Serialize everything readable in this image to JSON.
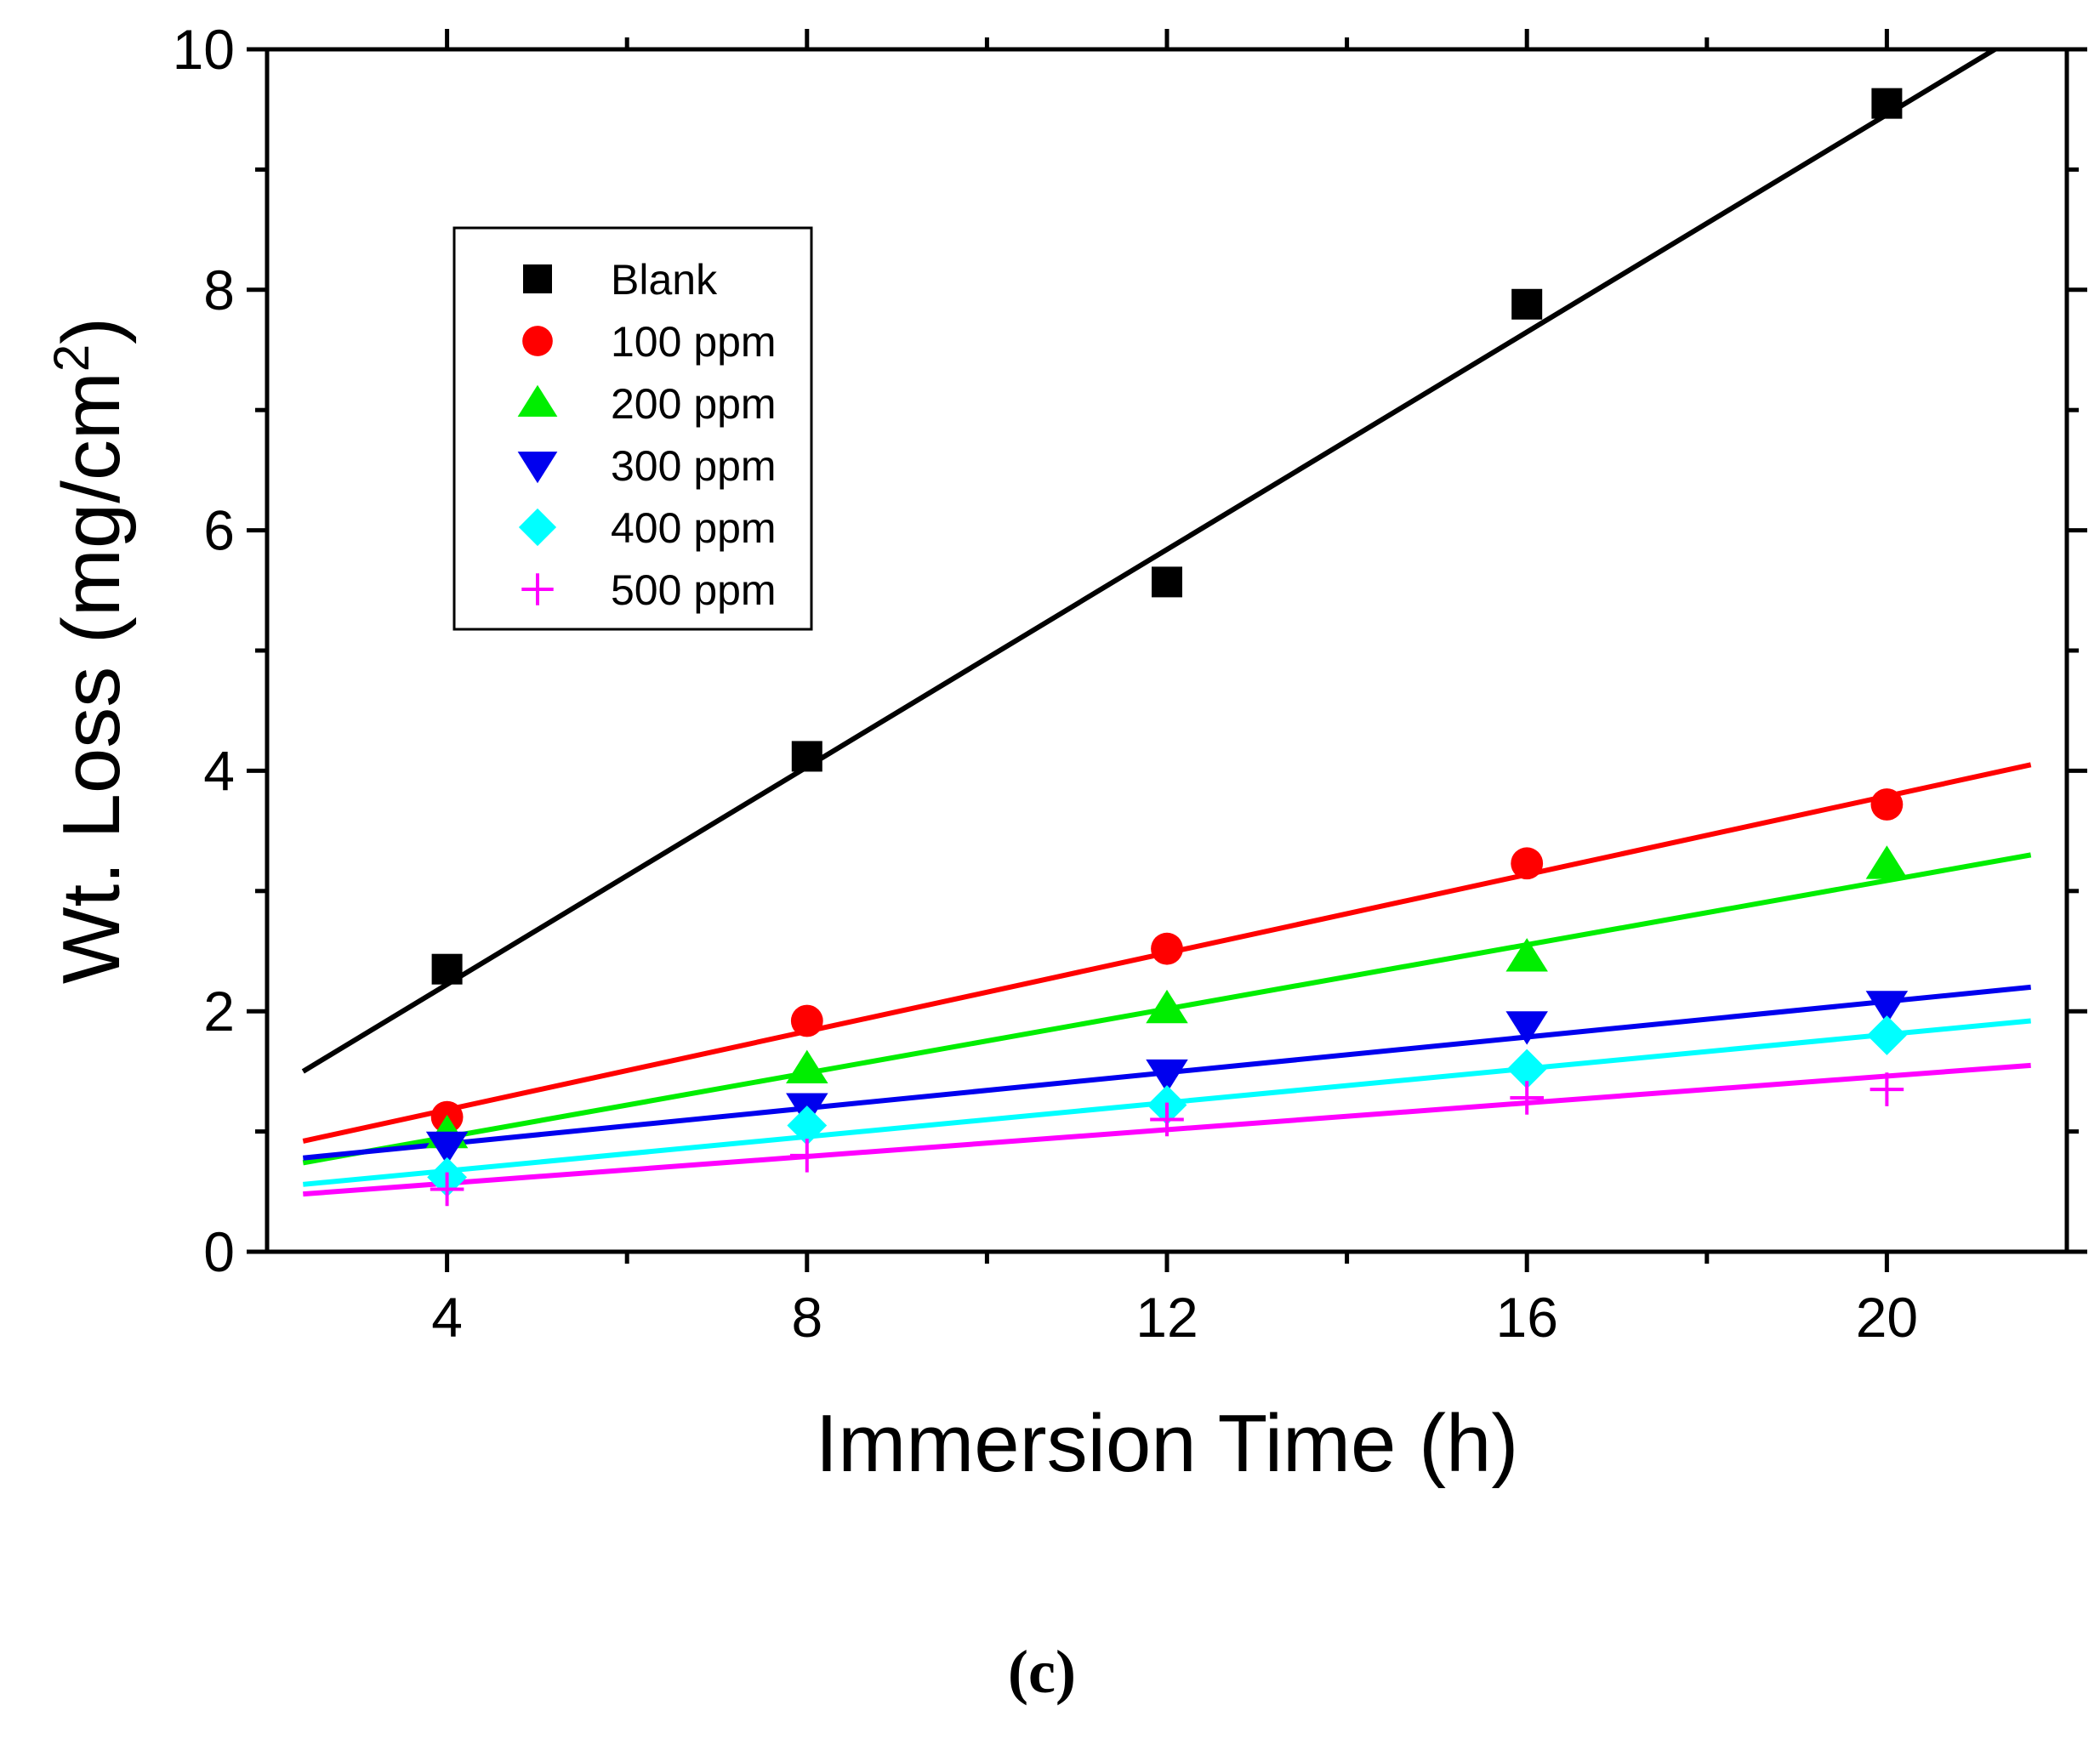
{
  "chart_data": {
    "type": "scatter",
    "xlabel": "Immersion Time (h)",
    "ylabel_main": "Wt. Loss (mg/cm",
    "ylabel_sup": "2",
    "ylabel_close": ")",
    "caption": "(c)",
    "xlim": [
      2.0,
      22.0
    ],
    "ylim": [
      0,
      10
    ],
    "x_ticks": [
      4,
      8,
      12,
      16,
      20
    ],
    "x_tick_labels": [
      "4",
      "8",
      "12",
      "16",
      "20"
    ],
    "x_minor_ticks": [
      6,
      10,
      14,
      18
    ],
    "y_ticks": [
      0,
      2,
      4,
      6,
      8,
      10
    ],
    "y_tick_labels": [
      "0",
      "2",
      "4",
      "6",
      "8",
      "10"
    ],
    "y_minor_ticks": [
      1,
      3,
      5,
      7,
      9
    ],
    "grid": false,
    "legend_position": "top-left",
    "x": [
      4,
      8,
      12,
      16,
      20
    ],
    "series": [
      {
        "name": "Blank",
        "marker": "square",
        "color": "#000000",
        "values": [
          2.35,
          4.12,
          5.57,
          7.88,
          9.55
        ],
        "fit": {
          "x": [
            2.4,
            21.2
          ],
          "y": [
            1.5,
            10.0
          ]
        }
      },
      {
        "name": "100 ppm",
        "marker": "circle",
        "color": "#ff0000",
        "values": [
          1.12,
          1.92,
          2.52,
          3.23,
          3.72
        ],
        "fit": {
          "x": [
            2.4,
            21.6
          ],
          "y": [
            0.92,
            4.05
          ]
        }
      },
      {
        "name": "200 ppm",
        "marker": "triangle-up",
        "color": "#00ee00",
        "values": [
          0.98,
          1.52,
          2.02,
          2.45,
          3.22
        ],
        "fit": {
          "x": [
            2.4,
            21.6
          ],
          "y": [
            0.74,
            3.3
          ]
        }
      },
      {
        "name": "300 ppm",
        "marker": "triangle-down",
        "color": "#0000ee",
        "values": [
          0.88,
          1.2,
          1.48,
          1.88,
          2.05
        ],
        "fit": {
          "x": [
            2.4,
            21.6
          ],
          "y": [
            0.78,
            2.2
          ]
        }
      },
      {
        "name": "400 ppm",
        "marker": "diamond",
        "color": "#00ffff",
        "values": [
          0.62,
          1.05,
          1.22,
          1.52,
          1.8
        ],
        "fit": {
          "x": [
            2.4,
            21.6
          ],
          "y": [
            0.56,
            1.92
          ]
        }
      },
      {
        "name": "500 ppm",
        "marker": "plus",
        "color": "#ff00ff",
        "values": [
          0.52,
          0.8,
          1.1,
          1.28,
          1.35
        ],
        "fit": {
          "x": [
            2.4,
            21.6
          ],
          "y": [
            0.48,
            1.55
          ]
        }
      }
    ]
  }
}
